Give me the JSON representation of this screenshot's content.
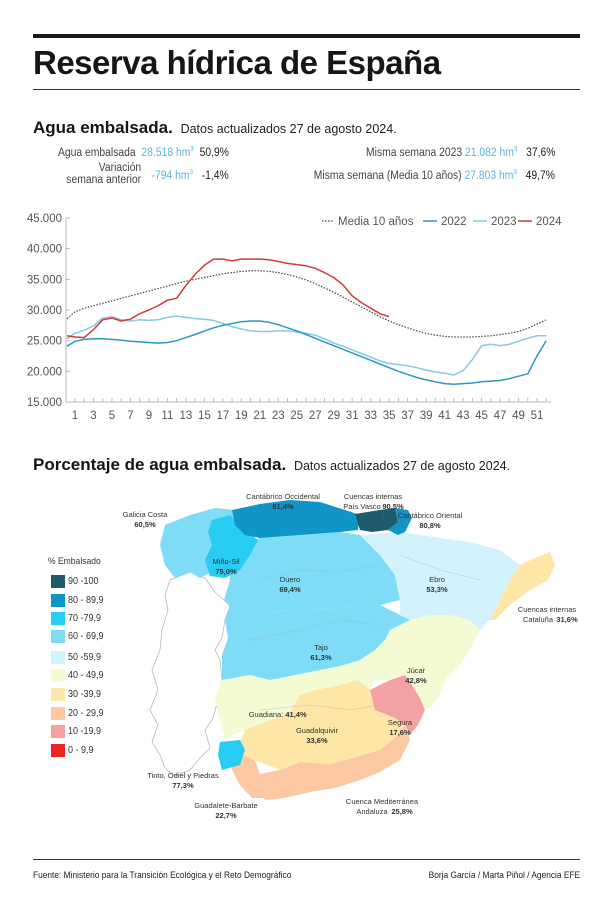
{
  "header": {
    "title": "Reserva hídrica de España"
  },
  "section1": {
    "heading": "Agua embalsada.",
    "subheading": "Datos actualizados 27 de agosto 2024."
  },
  "stats": {
    "agua_embalsada": {
      "label": "Agua embalsada",
      "value": "28.518 hm",
      "unit_sup": "3",
      "pct": "50,9%"
    },
    "variacion": {
      "label_line1": "Variación",
      "label_line2": "semana anterior",
      "value": "-794 hm",
      "unit_sup": "3",
      "pct": "-1,4%"
    },
    "misma_2023": {
      "label": "Misma semana 2023",
      "value": "21.082 hm",
      "unit_sup": "3",
      "pct": "37,6%"
    },
    "misma_media": {
      "label": "Misma semana (Media 10 años)",
      "value": "27.803 hm",
      "unit_sup": "3",
      "pct": "49,7%"
    }
  },
  "colors": {
    "value_blue": "#5bb5d8",
    "s2022": "#2e97c2",
    "s2023": "#88c8e3",
    "s2024": "#d23b3b",
    "media": "#444444"
  },
  "chart_data": {
    "type": "line",
    "title": "Agua embalsada",
    "xlabel": "",
    "ylabel": "",
    "ylim": [
      15000,
      45000
    ],
    "yticks": [
      15000,
      20000,
      25000,
      30000,
      35000,
      40000,
      45000
    ],
    "ytick_labels": [
      "15.000",
      "20.000",
      "25.000",
      "30.000",
      "35.000",
      "40.000",
      "45.000"
    ],
    "xlim": [
      0,
      52
    ],
    "xtick_labels": [
      "1",
      "3",
      "5",
      "7",
      "9",
      "11",
      "13",
      "15",
      "17",
      "19",
      "21",
      "23",
      "25",
      "27",
      "29",
      "31",
      "33",
      "35",
      "37",
      "39",
      "41",
      "43",
      "45",
      "47",
      "49",
      "51"
    ],
    "legend_position": "top-right",
    "grid": false,
    "series": [
      {
        "name": "Media 10 años",
        "style": "dotted",
        "x": [
          0,
          1,
          2,
          3,
          4,
          5,
          6,
          7,
          8,
          9,
          10,
          11,
          12,
          13,
          14,
          15,
          16,
          17,
          18,
          19,
          20,
          21,
          22,
          23,
          24,
          25,
          26,
          27,
          28,
          29,
          30,
          31,
          32,
          33,
          34,
          35,
          36,
          37,
          38,
          39,
          40,
          41,
          42,
          43,
          44,
          45,
          46,
          47,
          48,
          49,
          50,
          51,
          52
        ],
        "values": [
          28600,
          29700,
          30300,
          30700,
          31100,
          31500,
          31900,
          32300,
          32700,
          33100,
          33500,
          33900,
          34300,
          34700,
          35000,
          35300,
          35600,
          35900,
          36100,
          36300,
          36400,
          36400,
          36300,
          36100,
          35800,
          35400,
          34900,
          34300,
          33600,
          32900,
          32100,
          31300,
          30500,
          29700,
          28900,
          28200,
          27600,
          27100,
          26600,
          26200,
          25900,
          25700,
          25600,
          25600,
          25600,
          25700,
          25800,
          26000,
          26200,
          26500,
          27000,
          27700,
          28400
        ]
      },
      {
        "name": "2022",
        "style": "solid",
        "x": [
          0,
          1,
          2,
          3,
          4,
          5,
          6,
          7,
          8,
          9,
          10,
          11,
          12,
          13,
          14,
          15,
          16,
          17,
          18,
          19,
          20,
          21,
          22,
          23,
          24,
          25,
          26,
          27,
          28,
          29,
          30,
          31,
          32,
          33,
          34,
          35,
          36,
          37,
          38,
          39,
          40,
          41,
          42,
          43,
          44,
          45,
          46,
          47,
          48,
          49,
          50,
          51,
          52
        ],
        "values": [
          24100,
          24900,
          25200,
          25300,
          25300,
          25200,
          25100,
          24900,
          24800,
          24700,
          24600,
          24700,
          25000,
          25500,
          26000,
          26600,
          27100,
          27500,
          27800,
          28100,
          28200,
          28200,
          28000,
          27600,
          27100,
          26600,
          26000,
          25400,
          24800,
          24200,
          23600,
          23000,
          22400,
          21800,
          21200,
          20600,
          20000,
          19500,
          19000,
          18600,
          18300,
          18000,
          17900,
          18000,
          18100,
          18300,
          18400,
          18500,
          18800,
          19200,
          19600,
          22500,
          25000
        ]
      },
      {
        "name": "2023",
        "style": "solid",
        "x": [
          0,
          1,
          2,
          3,
          4,
          5,
          6,
          7,
          8,
          9,
          10,
          11,
          12,
          13,
          14,
          15,
          16,
          17,
          18,
          19,
          20,
          21,
          22,
          23,
          24,
          25,
          26,
          27,
          28,
          29,
          30,
          31,
          32,
          33,
          34,
          35,
          36,
          37,
          38,
          39,
          40,
          41,
          42,
          43,
          44,
          45,
          46,
          47,
          48,
          49,
          50,
          51,
          52
        ],
        "values": [
          25300,
          26200,
          26700,
          27400,
          28700,
          28900,
          28400,
          28200,
          28400,
          28300,
          28400,
          28800,
          29000,
          28800,
          28600,
          28500,
          28300,
          27800,
          27300,
          26900,
          26600,
          26500,
          26500,
          26600,
          26600,
          26400,
          26200,
          25900,
          25300,
          24600,
          24100,
          23500,
          22900,
          22300,
          21700,
          21300,
          21100,
          20900,
          20600,
          20200,
          19900,
          19700,
          19400,
          20100,
          21900,
          24200,
          24400,
          24200,
          24400,
          24900,
          25400,
          25800,
          25800
        ]
      },
      {
        "name": "2024",
        "style": "solid",
        "x": [
          0,
          1,
          2,
          3,
          4,
          5,
          6,
          7,
          8,
          9,
          10,
          11,
          12,
          13,
          14,
          15,
          16,
          17,
          18,
          19,
          20,
          21,
          22,
          23,
          24,
          25,
          26,
          27,
          28,
          29,
          30,
          31,
          32,
          33,
          34,
          35
        ],
        "values": [
          25800,
          25600,
          25500,
          26800,
          28400,
          28700,
          28200,
          28500,
          29400,
          30000,
          30700,
          31600,
          31900,
          34000,
          35800,
          37300,
          38300,
          38300,
          38000,
          38300,
          38300,
          38300,
          38200,
          37900,
          37600,
          37400,
          37200,
          36800,
          36100,
          35300,
          34100,
          32300,
          31200,
          30300,
          29400,
          28900
        ]
      }
    ]
  },
  "section2": {
    "heading": "Porcentaje de agua embalsada.",
    "subheading": "Datos actualizados 27 de agosto 2024."
  },
  "map_legend": {
    "title": "% Embalsado",
    "items": [
      {
        "label": "90 -100",
        "color": "#1f5a6f"
      },
      {
        "label": "80 - 89,9",
        "color": "#0f95c6"
      },
      {
        "label": "70 -79,9",
        "color": "#27cdf3"
      },
      {
        "label": "60 - 69,9",
        "color": "#7edcf7"
      },
      {
        "label": "50 -59,9",
        "color": "#d3f3fc"
      },
      {
        "label": "40 - 49,9",
        "color": "#f4fbd3"
      },
      {
        "label": "30 -39,9",
        "color": "#fde6a6"
      },
      {
        "label": "20 - 29,9",
        "color": "#fcc7a3"
      },
      {
        "label": "10 -19,9",
        "color": "#f4a1a3"
      },
      {
        "label": "0 - 9,9",
        "color": "#ee2424"
      }
    ]
  },
  "map_regions": {
    "galicia_costa": {
      "name": "Galicia Costa",
      "pct": "60,5%"
    },
    "cantabrico_occidental": {
      "name": "Cantábrico Occidental",
      "pct": "81,4%"
    },
    "pais_vasco": {
      "name_line1": "Cuencas internas",
      "name_line2": "País Vasco",
      "pct": "90,5%"
    },
    "cantabrico_oriental": {
      "name": "Cantábrico Oriental",
      "pct": "80,8%"
    },
    "mino_sil": {
      "name": "Miño-Sil",
      "pct": "75,0%"
    },
    "duero": {
      "name": "Duero",
      "pct": "69,4%"
    },
    "ebro": {
      "name": "Ebro",
      "pct": "53,3%"
    },
    "cataluna": {
      "name_line1": "Cuencas internas",
      "name_line2": "Cataluña",
      "pct": "31,6%"
    },
    "tajo": {
      "name": "Tajo",
      "pct": "61,3%"
    },
    "jucar": {
      "name": "Júcar",
      "pct": "42,8%"
    },
    "guadiana": {
      "name": "Guadiana:",
      "pct": "41,4%"
    },
    "guadalquivir": {
      "name": "Guadalquivir",
      "pct": "33,6%"
    },
    "segura": {
      "name": "Segura",
      "pct": "17,6%"
    },
    "tinto": {
      "name": "Tinto, Odiel y Piedras",
      "pct": "77,3%"
    },
    "guadalete": {
      "name": "Guadalete-Barbate",
      "pct": "22,7%"
    },
    "mediterranea": {
      "name_line1": "Cuenca Mediterránea",
      "name_line2": "Andaluza",
      "pct": "25,8%"
    }
  },
  "footer": {
    "source": "Fuente: Ministerio para la Transición Ecológica y el Reto Demográfico",
    "credits": "Borja García / Marta Piñol / Agencia EFE"
  }
}
